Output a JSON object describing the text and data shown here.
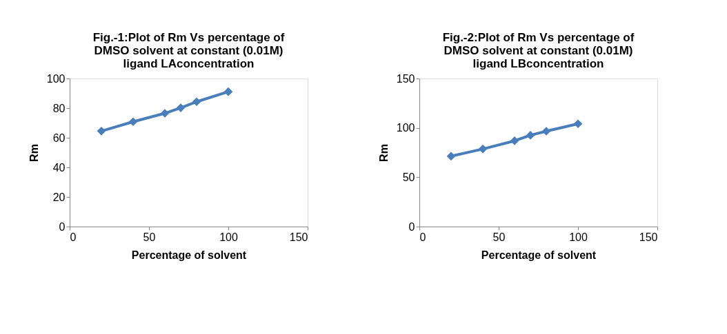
{
  "chart_data": [
    {
      "type": "line",
      "title": "Fig.-1:Plot of Rm Vs percentage of DMSO solvent at constant (0.01M) ligand  LAconcentration",
      "xlabel": "Percentage of solvent",
      "ylabel": "Rm",
      "x": [
        20,
        40,
        60,
        70,
        80,
        100
      ],
      "series": [
        {
          "color": "#4a7ebb",
          "values": [
            64.5,
            70.8,
            76.5,
            80.2,
            84.3,
            91.1
          ]
        }
      ],
      "xlim": [
        0,
        150
      ],
      "xticks": [
        0,
        50,
        100,
        150
      ],
      "ylim": [
        0,
        100
      ],
      "yticks": [
        0,
        20,
        40,
        60,
        80,
        100
      ],
      "grid": false,
      "marker": "diamond",
      "line_style": "solid"
    },
    {
      "type": "line",
      "title": "Fig.-2:Plot of Rm Vs percentage of DMSO solvent at constant (0.01M) ligand  LBconcentration",
      "xlabel": "Percentage of solvent",
      "ylabel": "Rm",
      "x": [
        20,
        40,
        60,
        70,
        80,
        100
      ],
      "series": [
        {
          "color": "#4a7ebb",
          "values": [
            71.3,
            78.6,
            86.9,
            92.5,
            96.6,
            104.1
          ]
        }
      ],
      "xlim": [
        0,
        150
      ],
      "xticks": [
        0,
        50,
        100,
        150
      ],
      "ylim": [
        0,
        150
      ],
      "yticks": [
        0,
        50,
        100,
        150
      ],
      "grid": false,
      "marker": "diamond",
      "line_style": "solid"
    }
  ]
}
